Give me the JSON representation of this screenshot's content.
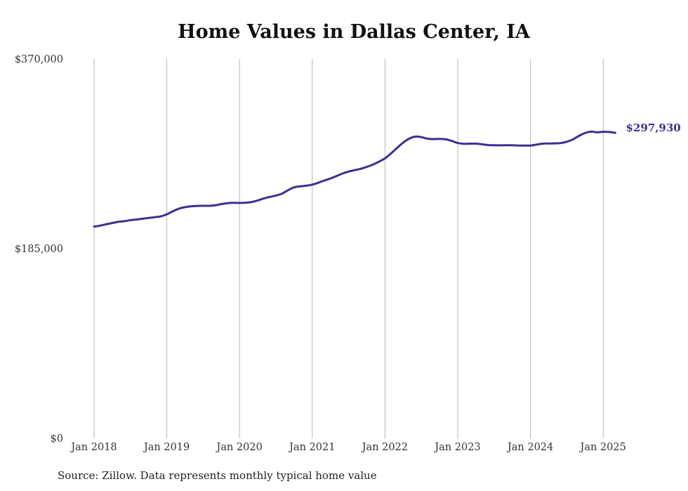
{
  "title": "Home Values in Dallas Center, IA",
  "source": "Source: Zillow. Data represents monthly typical home value",
  "chart_data": {
    "type": "line",
    "title": "Home Values in Dallas Center, IA",
    "xlabel": "",
    "ylabel": "",
    "ylim": [
      0,
      370000
    ],
    "yticks": [
      {
        "value": 0,
        "label": "$0"
      },
      {
        "value": 185000,
        "label": "$185,000"
      },
      {
        "value": 370000,
        "label": "$370,000"
      }
    ],
    "xticks": [
      {
        "value": "2018-01",
        "label": "Jan 2018"
      },
      {
        "value": "2019-01",
        "label": "Jan 2019"
      },
      {
        "value": "2020-01",
        "label": "Jan 2020"
      },
      {
        "value": "2021-01",
        "label": "Jan 2021"
      },
      {
        "value": "2022-01",
        "label": "Jan 2022"
      },
      {
        "value": "2023-01",
        "label": "Jan 2023"
      },
      {
        "value": "2024-01",
        "label": "Jan 2024"
      },
      {
        "value": "2025-01",
        "label": "Jan 2025"
      }
    ],
    "grid": "vertical",
    "line_color": "#3b3190",
    "end_label": "$297,930",
    "series": [
      {
        "x": [
          "2018-01",
          "2018-02",
          "2018-03",
          "2018-04",
          "2018-05",
          "2018-06",
          "2018-07",
          "2018-08",
          "2018-09",
          "2018-10",
          "2018-11",
          "2018-12",
          "2019-01",
          "2019-02",
          "2019-03",
          "2019-04",
          "2019-05",
          "2019-06",
          "2019-07",
          "2019-08",
          "2019-09",
          "2019-10",
          "2019-11",
          "2019-12",
          "2020-01",
          "2020-02",
          "2020-03",
          "2020-04",
          "2020-05",
          "2020-06",
          "2020-07",
          "2020-08",
          "2020-09",
          "2020-10",
          "2020-11",
          "2020-12",
          "2021-01",
          "2021-02",
          "2021-03",
          "2021-04",
          "2021-05",
          "2021-06",
          "2021-07",
          "2021-08",
          "2021-09",
          "2021-10",
          "2021-11",
          "2021-12",
          "2022-01",
          "2022-02",
          "2022-03",
          "2022-04",
          "2022-05",
          "2022-06",
          "2022-07",
          "2022-08",
          "2022-09",
          "2022-10",
          "2022-11",
          "2022-12",
          "2023-01",
          "2023-02",
          "2023-03",
          "2023-04",
          "2023-05",
          "2023-06",
          "2023-07",
          "2023-08",
          "2023-09",
          "2023-10",
          "2023-11",
          "2023-12",
          "2024-01",
          "2024-02",
          "2024-03",
          "2024-04",
          "2024-05",
          "2024-06",
          "2024-07",
          "2024-08",
          "2024-09",
          "2024-10",
          "2024-11",
          "2024-12",
          "2025-01",
          "2025-02",
          "2025-03"
        ],
        "values": [
          206500,
          207500,
          208800,
          210000,
          211200,
          211800,
          212800,
          213400,
          214200,
          215000,
          215700,
          216500,
          218500,
          221500,
          224000,
          225500,
          226300,
          226700,
          226800,
          226800,
          227300,
          228500,
          229400,
          229700,
          229600,
          229800,
          230500,
          232000,
          234000,
          235500,
          236800,
          238700,
          242000,
          244800,
          245800,
          246400,
          247500,
          249300,
          251500,
          253500,
          255800,
          258300,
          260200,
          261600,
          262900,
          264800,
          267000,
          269800,
          273100,
          277900,
          283300,
          288400,
          292300,
          294300,
          293800,
          292300,
          291900,
          292100,
          291700,
          290100,
          288100,
          287300,
          287400,
          287400,
          286800,
          286100,
          285900,
          285800,
          285900,
          285900,
          285600,
          285600,
          285600,
          286500,
          287400,
          287600,
          287700,
          288000,
          289300,
          291600,
          295000,
          297800,
          299200,
          298500,
          299000,
          298800,
          297930
        ]
      }
    ]
  }
}
